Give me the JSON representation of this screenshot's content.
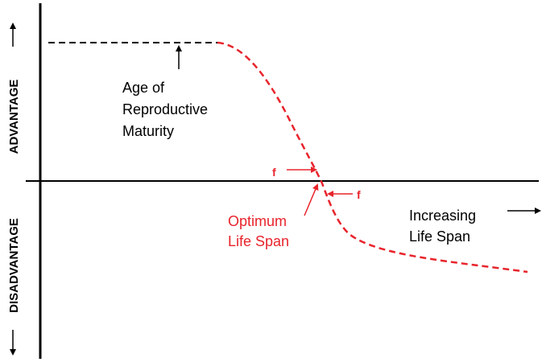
{
  "y_axis": {
    "top_label": "ADVANTAGE",
    "bottom_label": "DISADVANTAGE"
  },
  "annotations": {
    "maturity": [
      "Age of",
      "Reproductive",
      "Maturity"
    ],
    "optimum": [
      "Optimum",
      "Life Span"
    ],
    "increasing": [
      "Increasing",
      "Life Span"
    ],
    "force_left": "f",
    "force_right": "f"
  }
}
